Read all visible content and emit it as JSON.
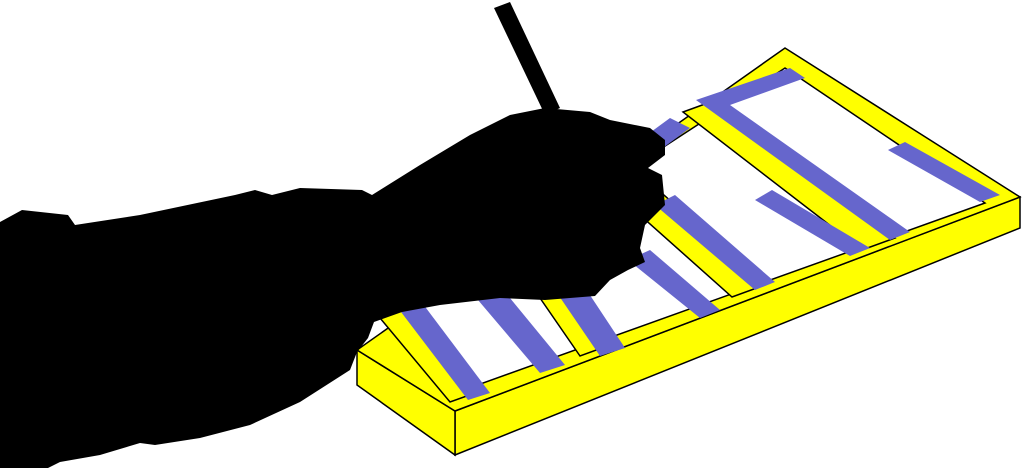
{
  "illustration": {
    "subject": "hand-writing-on-clipboard",
    "colors": {
      "background": "#ffffff",
      "frame": "#ffff00",
      "stripe": "#6666cc",
      "paper": "#ffffff",
      "silhouette": "#000000",
      "outline": "#000000"
    }
  }
}
